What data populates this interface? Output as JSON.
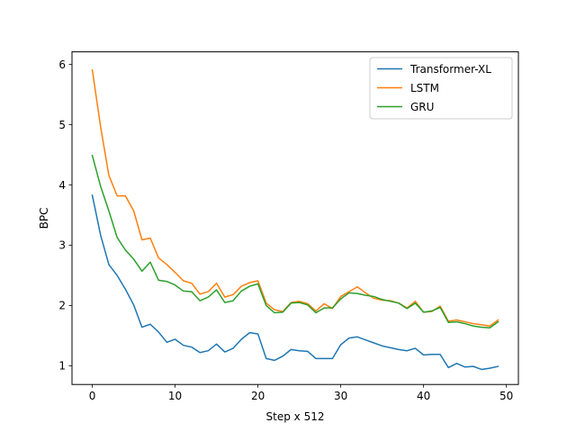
{
  "chart_data": {
    "type": "line",
    "xlabel": "Step x 512",
    "ylabel": "BPC",
    "xlim": [
      -2.45,
      51.45
    ],
    "ylim": [
      0.69,
      6.21
    ],
    "xticks": [
      0,
      10,
      20,
      30,
      40,
      50
    ],
    "yticks": [
      1,
      2,
      3,
      4,
      5,
      6
    ],
    "grid": false,
    "legend_position": "top-right",
    "x": [
      0,
      1,
      2,
      3,
      4,
      5,
      6,
      7,
      8,
      9,
      10,
      11,
      12,
      13,
      14,
      15,
      16,
      17,
      18,
      19,
      20,
      21,
      22,
      23,
      24,
      25,
      26,
      27,
      28,
      29,
      30,
      31,
      32,
      33,
      34,
      35,
      36,
      37,
      38,
      39,
      40,
      41,
      42,
      43,
      44,
      45,
      46,
      47,
      48,
      49
    ],
    "series": [
      {
        "name": "Transformer-XL",
        "color": "#1f77b4",
        "values": [
          3.83,
          3.17,
          2.68,
          2.5,
          2.27,
          2.01,
          1.64,
          1.69,
          1.56,
          1.39,
          1.44,
          1.34,
          1.31,
          1.22,
          1.25,
          1.36,
          1.23,
          1.29,
          1.44,
          1.55,
          1.53,
          1.12,
          1.09,
          1.16,
          1.27,
          1.25,
          1.24,
          1.12,
          1.12,
          1.12,
          1.35,
          1.46,
          1.48,
          1.43,
          1.38,
          1.33,
          1.3,
          1.27,
          1.25,
          1.29,
          1.18,
          1.19,
          1.19,
          0.97,
          1.04,
          0.98,
          0.99,
          0.94,
          0.96,
          0.99
        ]
      },
      {
        "name": "LSTM",
        "color": "#ff7f0e",
        "values": [
          5.91,
          4.97,
          4.16,
          3.82,
          3.82,
          3.57,
          3.09,
          3.12,
          2.79,
          2.68,
          2.55,
          2.41,
          2.37,
          2.19,
          2.23,
          2.37,
          2.14,
          2.18,
          2.32,
          2.38,
          2.41,
          2.04,
          1.93,
          1.9,
          2.05,
          2.07,
          2.03,
          1.91,
          2.03,
          1.95,
          2.15,
          2.23,
          2.31,
          2.21,
          2.12,
          2.09,
          2.08,
          2.04,
          1.96,
          2.07,
          1.89,
          1.9,
          1.99,
          1.74,
          1.76,
          1.73,
          1.7,
          1.68,
          1.66,
          1.76
        ]
      },
      {
        "name": "GRU",
        "color": "#2ca02c",
        "values": [
          4.49,
          3.98,
          3.57,
          3.13,
          2.92,
          2.77,
          2.57,
          2.72,
          2.42,
          2.4,
          2.34,
          2.24,
          2.23,
          2.08,
          2.14,
          2.26,
          2.05,
          2.08,
          2.24,
          2.32,
          2.36,
          2.0,
          1.88,
          1.89,
          2.04,
          2.05,
          2.01,
          1.88,
          1.96,
          1.96,
          2.11,
          2.21,
          2.2,
          2.17,
          2.15,
          2.1,
          2.07,
          2.04,
          1.95,
          2.04,
          1.89,
          1.91,
          1.97,
          1.72,
          1.73,
          1.7,
          1.66,
          1.64,
          1.63,
          1.73
        ]
      }
    ]
  }
}
